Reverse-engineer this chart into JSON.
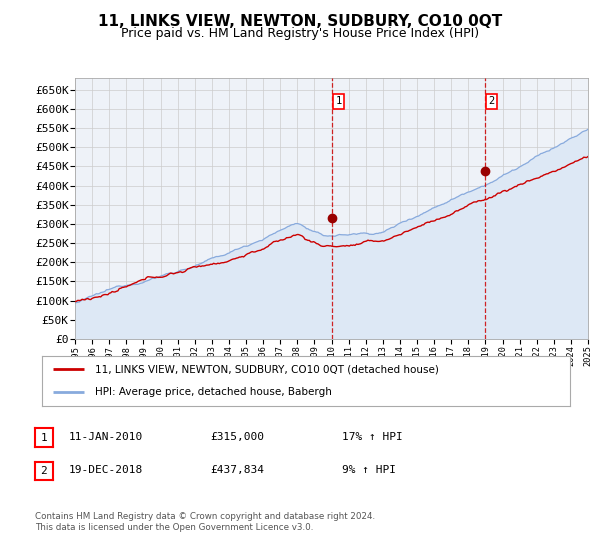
{
  "title": "11, LINKS VIEW, NEWTON, SUDBURY, CO10 0QT",
  "subtitle": "Price paid vs. HM Land Registry's House Price Index (HPI)",
  "ylabel_ticks": [
    "£0",
    "£50K",
    "£100K",
    "£150K",
    "£200K",
    "£250K",
    "£300K",
    "£350K",
    "£400K",
    "£450K",
    "£500K",
    "£550K",
    "£600K",
    "£650K"
  ],
  "ytick_values": [
    0,
    50000,
    100000,
    150000,
    200000,
    250000,
    300000,
    350000,
    400000,
    450000,
    500000,
    550000,
    600000,
    650000
  ],
  "xlim_start": 1995,
  "xlim_end": 2025,
  "ylim_min": 0,
  "ylim_max": 680000,
  "sale1_date": 2010.04,
  "sale1_price": 315000,
  "sale1_label": "1",
  "sale2_date": 2018.96,
  "sale2_price": 437834,
  "sale2_label": "2",
  "legend_property": "11, LINKS VIEW, NEWTON, SUDBURY, CO10 0QT (detached house)",
  "legend_hpi": "HPI: Average price, detached house, Babergh",
  "property_line_color": "#cc0000",
  "hpi_line_color": "#88aadd",
  "hpi_fill_color": "#dde8f5",
  "sale_marker_color": "#990000",
  "vline_color": "#cc0000",
  "grid_color": "#cccccc",
  "background_color": "#ffffff",
  "plot_bg_color": "#eef2f8",
  "ann1_date": "11-JAN-2010",
  "ann1_price": "£315,000",
  "ann1_pct": "17% ↑ HPI",
  "ann2_date": "19-DEC-2018",
  "ann2_price": "£437,834",
  "ann2_pct": "9% ↑ HPI",
  "footnote": "Contains HM Land Registry data © Crown copyright and database right 2024.\nThis data is licensed under the Open Government Licence v3.0.",
  "title_fontsize": 11,
  "subtitle_fontsize": 9,
  "axis_fontsize": 8
}
